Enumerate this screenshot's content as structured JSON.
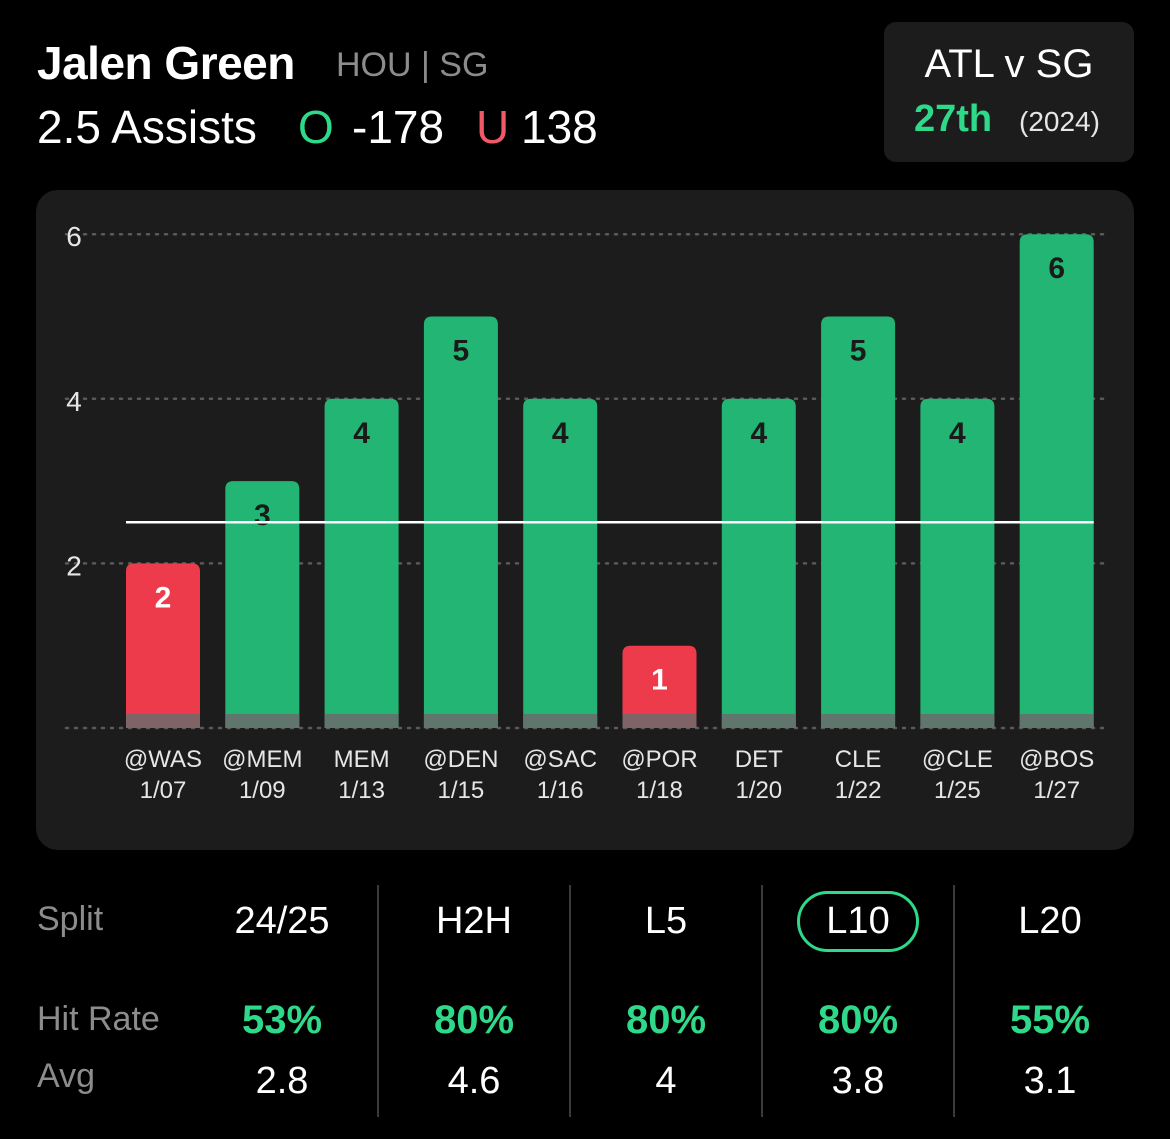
{
  "header": {
    "player_name": "Jalen Green",
    "team_pos": "HOU | SG",
    "prop": "2.5 Assists",
    "over_label": "O",
    "over_odds": "-178",
    "under_label": "U",
    "under_odds": "138"
  },
  "matchup": {
    "title": "ATL v SG",
    "rank": "27th",
    "year": "(2024)"
  },
  "colors": {
    "hit": "#22b573",
    "miss": "#ee3b4b",
    "accent": "#2ed98a",
    "panel": "#1c1c1c"
  },
  "chart_data": {
    "type": "bar",
    "categories": [
      "@WAS\n1/07",
      "@MEM\n1/09",
      "MEM\n1/13",
      "@DEN\n1/15",
      "@SAC\n1/16",
      "@POR\n1/18",
      "DET\n1/20",
      "CLE\n1/22",
      "@CLE\n1/25",
      "@BOS\n1/27"
    ],
    "opponents": [
      "@WAS",
      "@MEM",
      "MEM",
      "@DEN",
      "@SAC",
      "@POR",
      "DET",
      "CLE",
      "@CLE",
      "@BOS"
    ],
    "dates": [
      "1/07",
      "1/09",
      "1/13",
      "1/15",
      "1/16",
      "1/18",
      "1/20",
      "1/22",
      "1/25",
      "1/27"
    ],
    "values": [
      2,
      3,
      4,
      5,
      4,
      1,
      4,
      5,
      4,
      6
    ],
    "line": 2.5,
    "ylim": [
      0,
      6
    ],
    "yticks": [
      2,
      4,
      6
    ],
    "grid": true,
    "title": "",
    "xlabel": "",
    "ylabel": ""
  },
  "splits": {
    "row_labels": {
      "split": "Split",
      "hit_rate": "Hit Rate",
      "avg": "Avg"
    },
    "columns": [
      {
        "label": "24/25",
        "hit_rate": "53%",
        "avg": "2.8",
        "active": false
      },
      {
        "label": "H2H",
        "hit_rate": "80%",
        "avg": "4.6",
        "active": false
      },
      {
        "label": "L5",
        "hit_rate": "80%",
        "avg": "4",
        "active": false
      },
      {
        "label": "L10",
        "hit_rate": "80%",
        "avg": "3.8",
        "active": true
      },
      {
        "label": "L20",
        "hit_rate": "55%",
        "avg": "3.1",
        "active": false
      }
    ]
  }
}
